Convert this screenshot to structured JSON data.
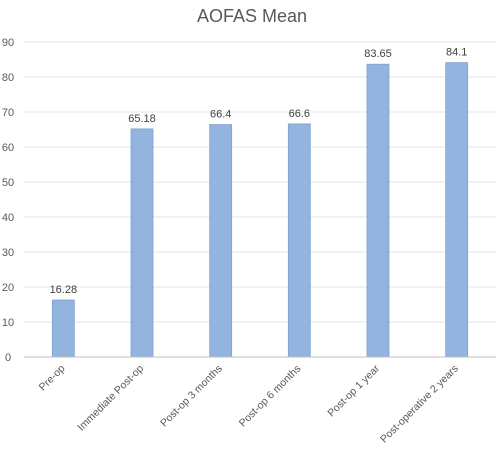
{
  "chart_data": {
    "type": "bar",
    "title": "AOFAS Mean",
    "categories": [
      "Pre-op",
      "Immediate Post-op",
      "Post-op 3 months",
      "Post-op 6 months",
      "Post-op 1 year",
      "Post-operative 2 years"
    ],
    "values": [
      16.28,
      65.18,
      66.4,
      66.6,
      83.65,
      84.1
    ],
    "data_labels": [
      "16.28",
      "65.18",
      "66.4",
      "66.6",
      "83.65",
      "84.1"
    ],
    "ylim": [
      0,
      90
    ],
    "yticks": [
      "0",
      "10",
      "20",
      "30",
      "40",
      "50",
      "60",
      "70",
      "80",
      "90"
    ],
    "grid": true,
    "bar_color": "#92b4de",
    "bar_edge_color": "#7fa3cf"
  }
}
